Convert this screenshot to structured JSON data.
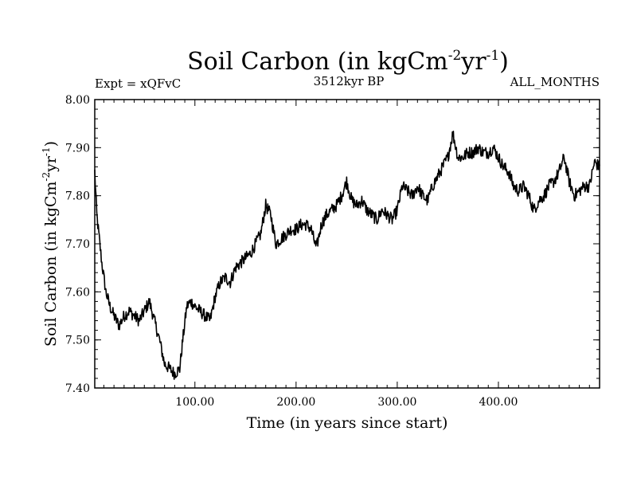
{
  "chart_data": {
    "type": "line",
    "title": "Soil Carbon (in kgCm",
    "title_sup1": "-2",
    "title_mid": "yr",
    "title_sup2": "-1",
    "title_end": ")",
    "experiment": "Expt = xQFvC",
    "period": "3512kyr BP",
    "months": "ALL_MONTHS",
    "xlabel": "Time (in years since start)",
    "ylabel_main": "Soil Carbon (in kgCm",
    "ylabel_sup1": "-2",
    "ylabel_mid": "yr",
    "ylabel_sup2": "-1",
    "ylabel_end": ")",
    "xlim": [
      1,
      500
    ],
    "ylim": [
      7.4,
      8.0
    ],
    "x_ticks": [
      100,
      200,
      300,
      400
    ],
    "x_tick_labels": [
      "100.00",
      "200.00",
      "300.00",
      "400.00"
    ],
    "y_ticks": [
      7.4,
      7.5,
      7.6,
      7.7,
      7.8,
      7.9,
      8.0
    ],
    "y_tick_labels": [
      "7.40",
      "7.50",
      "7.60",
      "7.70",
      "7.80",
      "7.90",
      "8.00"
    ],
    "series": [
      {
        "name": "Soil Carbon",
        "color": "#000000",
        "x": [
          1,
          3,
          5,
          8,
          12,
          16,
          20,
          25,
          30,
          35,
          40,
          45,
          50,
          55,
          60,
          65,
          70,
          75,
          80,
          85,
          88,
          92,
          96,
          100,
          105,
          110,
          115,
          120,
          125,
          130,
          135,
          140,
          145,
          150,
          155,
          160,
          165,
          170,
          175,
          180,
          185,
          190,
          195,
          200,
          205,
          210,
          215,
          220,
          225,
          230,
          235,
          240,
          245,
          250,
          255,
          260,
          265,
          270,
          275,
          280,
          285,
          290,
          295,
          300,
          305,
          310,
          315,
          320,
          325,
          330,
          335,
          340,
          345,
          350,
          355,
          360,
          365,
          370,
          375,
          380,
          385,
          390,
          395,
          400,
          405,
          410,
          415,
          420,
          425,
          430,
          435,
          440,
          445,
          450,
          455,
          460,
          465,
          470,
          475,
          480,
          485,
          490,
          495,
          500
        ],
        "values": [
          7.85,
          7.76,
          7.72,
          7.66,
          7.6,
          7.57,
          7.55,
          7.53,
          7.55,
          7.56,
          7.55,
          7.54,
          7.56,
          7.58,
          7.54,
          7.5,
          7.45,
          7.44,
          7.43,
          7.44,
          7.5,
          7.57,
          7.58,
          7.57,
          7.56,
          7.55,
          7.54,
          7.59,
          7.62,
          7.63,
          7.62,
          7.65,
          7.66,
          7.67,
          7.68,
          7.7,
          7.72,
          7.78,
          7.76,
          7.7,
          7.71,
          7.72,
          7.73,
          7.73,
          7.74,
          7.74,
          7.73,
          7.69,
          7.74,
          7.76,
          7.77,
          7.78,
          7.8,
          7.83,
          7.79,
          7.78,
          7.79,
          7.77,
          7.76,
          7.75,
          7.77,
          7.76,
          7.75,
          7.77,
          7.82,
          7.81,
          7.8,
          7.82,
          7.8,
          7.79,
          7.82,
          7.84,
          7.86,
          7.88,
          7.93,
          7.88,
          7.88,
          7.89,
          7.89,
          7.9,
          7.89,
          7.89,
          7.9,
          7.88,
          7.86,
          7.85,
          7.82,
          7.81,
          7.82,
          7.8,
          7.77,
          7.79,
          7.8,
          7.82,
          7.83,
          7.85,
          7.88,
          7.83,
          7.8,
          7.81,
          7.82,
          7.82,
          7.87,
          7.86
        ]
      }
    ]
  }
}
